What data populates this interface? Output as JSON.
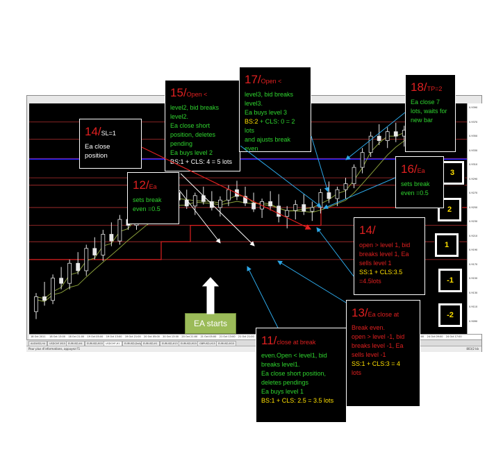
{
  "window": {
    "symbol_header": "USDCHF,H1  0.92420 0.92430 0.92400 0.92407",
    "period_label": "2/60",
    "status_text": "Pour plus d'informations, appuyez F1",
    "status_right": "803/2 kb"
  },
  "tabs": [
    "AUDUSD,H4",
    "USDCHF,M15",
    "EURUSD,H4",
    "EURUSD,M15",
    "USDCHF,H1",
    "EURUSD,Daily",
    "EURUSD,H1",
    "EURUSD,H15",
    "EURUSD,M15",
    "GBPUSD,H15",
    "EURUSD,M15"
  ],
  "active_tab": 4,
  "price_ticks": [
    "0.9390",
    "0.9370",
    "0.9350",
    "0.9330",
    "0.9310",
    "0.9290",
    "0.9270",
    "0.9250",
    "0.9230",
    "0.9210",
    "0.9190",
    "0.9170",
    "0.9150",
    "0.9130",
    "0.9110",
    "0.9090"
  ],
  "time_ticks": [
    "18 Oct 2011",
    "18 Oct 13:00",
    "18 Oct 21:00",
    "19 Oct 05:00",
    "19 Oct 13:00",
    "19 Oct 21:00",
    "20 Oct 05:00",
    "20 Oct 13:00",
    "20 Oct 21:00",
    "21 Oct 05:00",
    "21 Oct 13:00",
    "21 Oct 21:00",
    "24 Oct 05:00",
    "24 Oct 13:00",
    "24 Oct 21:00",
    "25 Oct 05:00",
    "25 Oct 13:00",
    "25 Oct 21:00",
    "26 Oct 05:00",
    "26 Oct 13:00",
    "26 Oct 21:00",
    "24 Oct 09:00",
    "24 Oct 17:00"
  ],
  "colors": {
    "candle": "#e8e8e8",
    "ma": "#8a9f3a",
    "level_line": "#b33030",
    "break_even_line": "#1c1cff",
    "red_line": "#e02020",
    "arrow_red": "#e02020",
    "arrow_white": "#ffffff",
    "arrow_blue": "#2da8e8"
  },
  "levels": [
    "3",
    "2",
    "1",
    "-1",
    "-2"
  ],
  "ea_starts": "EA starts",
  "notes": {
    "n14sl": {
      "num": "14/",
      "head": "SL=1",
      "lines": [
        "Ea close",
        "position"
      ]
    },
    "n15": {
      "num": "15/",
      "head": "Open <",
      "lines": [
        "level2, bid breaks level2.",
        "Ea close short position, deletes pending",
        "Ea buys level 2",
        "BS:1  + CLS: 4 = 5 lots"
      ]
    },
    "n17": {
      "num": "17/",
      "head": "Open <",
      "lines": [
        "level3, bid breaks level3.",
        "Ea buys level 3"
      ],
      "bs_label": "BS:2",
      "bs_rest": " + CLS: 0 = 2 lots",
      "tail": [
        "and ajusts break even"
      ]
    },
    "n18": {
      "num": "18/",
      "head": "TP=2",
      "lines": [
        "Ea close 7 lots, waits for new bar"
      ]
    },
    "n12": {
      "num": "12/",
      "head": "Ea",
      "lines": [
        "sets break",
        "even =0.5"
      ]
    },
    "n16": {
      "num": "16/",
      "head": "Ea",
      "lines": [
        "sets break",
        "even =0.5"
      ]
    },
    "n14": {
      "num": "14/",
      "head": "",
      "lines": [
        "open > level 1, bid breaks level 1, Ea sells level 1",
        "SS:1 + CLS:3.5",
        "=4.5lots"
      ]
    },
    "n13": {
      "num": "13/",
      "head": "Ea close at",
      "lines": [
        "Break even.",
        "open > level -1, bid breaks level -1, Ea sells level -1",
        "SS:1 + CLS:3 = 4",
        "lots"
      ]
    },
    "n11": {
      "num": "11/",
      "head": "close at break",
      "lines": [
        "even.Open < level1, bid breaks level1.",
        "Ea close short position, deletes pendings",
        "Ea buys level 1",
        "BS:1  + CLS: 2.5 = 3.5 lots"
      ]
    }
  },
  "chart_data": {
    "type": "candlestick",
    "symbol": "USDCHF",
    "timeframe": "H1",
    "price_range": [
      0.909,
      0.94
    ],
    "ohlc": [
      [
        0.912,
        0.9145,
        0.911,
        0.914
      ],
      [
        0.914,
        0.916,
        0.9128,
        0.9135
      ],
      [
        0.9135,
        0.917,
        0.913,
        0.9165
      ],
      [
        0.9165,
        0.918,
        0.915,
        0.9158
      ],
      [
        0.9158,
        0.919,
        0.915,
        0.9185
      ],
      [
        0.9185,
        0.92,
        0.917,
        0.9175
      ],
      [
        0.9175,
        0.921,
        0.9168,
        0.9205
      ],
      [
        0.9205,
        0.922,
        0.919,
        0.9196
      ],
      [
        0.9196,
        0.923,
        0.9188,
        0.9224
      ],
      [
        0.9224,
        0.924,
        0.9208,
        0.9215
      ],
      [
        0.9215,
        0.925,
        0.921,
        0.9244
      ],
      [
        0.9244,
        0.9262,
        0.923,
        0.9236
      ],
      [
        0.9236,
        0.9268,
        0.923,
        0.926
      ],
      [
        0.926,
        0.9276,
        0.9245,
        0.9252
      ],
      [
        0.9252,
        0.928,
        0.9248,
        0.9274
      ],
      [
        0.9274,
        0.929,
        0.9262,
        0.9266
      ],
      [
        0.9266,
        0.9285,
        0.9255,
        0.928
      ],
      [
        0.928,
        0.9292,
        0.9266,
        0.927
      ],
      [
        0.927,
        0.9284,
        0.9258,
        0.9262
      ],
      [
        0.9262,
        0.928,
        0.925,
        0.9276
      ],
      [
        0.9276,
        0.9288,
        0.9264,
        0.9268
      ],
      [
        0.9268,
        0.9282,
        0.9256,
        0.926
      ],
      [
        0.926,
        0.9275,
        0.9248,
        0.927
      ],
      [
        0.927,
        0.929,
        0.9262,
        0.9284
      ],
      [
        0.9284,
        0.9296,
        0.927,
        0.9275
      ],
      [
        0.9275,
        0.9288,
        0.9262,
        0.9266
      ],
      [
        0.9266,
        0.928,
        0.9254,
        0.9258
      ],
      [
        0.9258,
        0.9272,
        0.9246,
        0.9268
      ],
      [
        0.9268,
        0.9282,
        0.9256,
        0.9262
      ],
      [
        0.9262,
        0.9278,
        0.924,
        0.9248
      ],
      [
        0.9248,
        0.9262,
        0.9232,
        0.9256
      ],
      [
        0.9256,
        0.927,
        0.9244,
        0.9264
      ],
      [
        0.9264,
        0.9278,
        0.925,
        0.9255
      ],
      [
        0.9255,
        0.9268,
        0.9242,
        0.926
      ],
      [
        0.926,
        0.9285,
        0.9252,
        0.928
      ],
      [
        0.928,
        0.9295,
        0.9266,
        0.9272
      ],
      [
        0.9272,
        0.9288,
        0.9262,
        0.9284
      ],
      [
        0.9284,
        0.93,
        0.9272,
        0.9292
      ],
      [
        0.9292,
        0.9318,
        0.9286,
        0.9314
      ],
      [
        0.9314,
        0.934,
        0.9306,
        0.9334
      ],
      [
        0.9334,
        0.9362,
        0.9328,
        0.9356
      ],
      [
        0.9356,
        0.9372,
        0.9344,
        0.935
      ],
      [
        0.935,
        0.9368,
        0.934,
        0.9362
      ],
      [
        0.9362,
        0.9374,
        0.9348,
        0.9356
      ],
      [
        0.9356,
        0.937,
        0.9342,
        0.9364
      ],
      [
        0.9364,
        0.9376,
        0.935,
        0.9358
      ],
      [
        0.9358,
        0.9372,
        0.9346,
        0.9366
      ],
      [
        0.9366,
        0.9378,
        0.9352,
        0.936
      ],
      [
        0.936,
        0.9374,
        0.9348,
        0.9354
      ],
      [
        0.9354,
        0.9368,
        0.934,
        0.9362
      ]
    ],
    "horizontal_levels": [
      0.9375,
      0.9352,
      0.9326,
      0.93,
      0.929,
      0.926,
      0.9236,
      0.9214,
      0.919
    ],
    "break_even_level": 0.9325,
    "grid": false
  }
}
